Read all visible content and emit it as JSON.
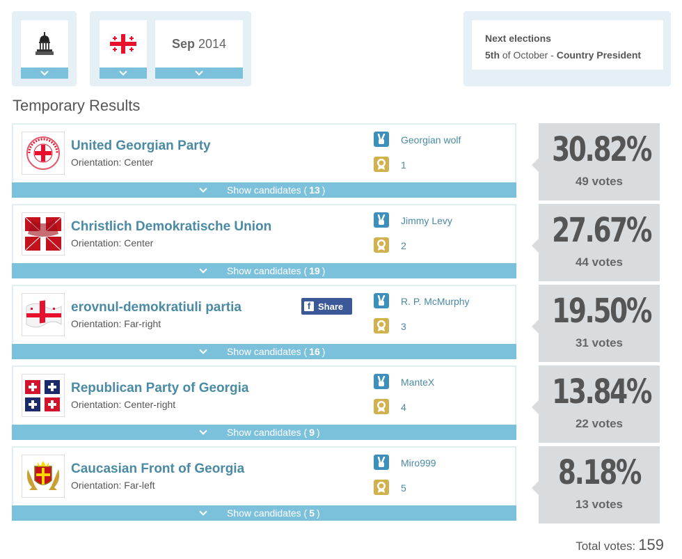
{
  "selectors": {
    "chamber_icon": "capitol-icon",
    "country_icon": "georgia-flag-icon",
    "date_month": "Sep",
    "date_year": "2014"
  },
  "next_elections": {
    "title": "Next elections",
    "day": "5th",
    "of": "of October - ",
    "what": "Country President"
  },
  "section_title": "Temporary Results",
  "candidates_label": "Show candidates (",
  "candidates_close": ")",
  "orientation_label": "Orientation: ",
  "share_label": "Share",
  "parties": [
    {
      "name": "United Georgian Party",
      "orientation": "Center",
      "leader": "Georgian wolf",
      "rank": "1",
      "candidates": "13",
      "percent": "30.82%",
      "votes": "49 votes",
      "logo": "circular-georgian-party-seal"
    },
    {
      "name": "Christlich Demokratische Union",
      "orientation": "Center",
      "leader": "Jimmy Levy",
      "rank": "2",
      "candidates": "19",
      "percent": "27.67%",
      "votes": "44 votes",
      "logo": "red-cross-flag"
    },
    {
      "name": "erovnul-demokratiuli partia",
      "orientation": "Far-right",
      "leader": "R. P. McMurphy",
      "rank": "3",
      "candidates": "16",
      "percent": "19.50%",
      "votes": "31 votes",
      "logo": "waving-georgian-flag",
      "has_share": true
    },
    {
      "name": "Republican Party of Georgia",
      "orientation": "Center-right",
      "leader": "ManteX",
      "rank": "4",
      "candidates": "9",
      "percent": "13.84%",
      "votes": "22 votes",
      "logo": "four-cross-quarters"
    },
    {
      "name": "Caucasian Front of Georgia",
      "orientation": "Far-left",
      "leader": "Miro999",
      "rank": "5",
      "candidates": "5",
      "percent": "8.18%",
      "votes": "13 votes",
      "logo": "coat-of-arms"
    }
  ],
  "total_label": "Total votes:",
  "total_votes": "159",
  "colors": {
    "accent_bar": "#7cc1dc",
    "link": "#4a8aa4",
    "result_bg": "#d9dcdf",
    "panel_bg": "#e4eff6",
    "facebook": "#3b5998"
  }
}
